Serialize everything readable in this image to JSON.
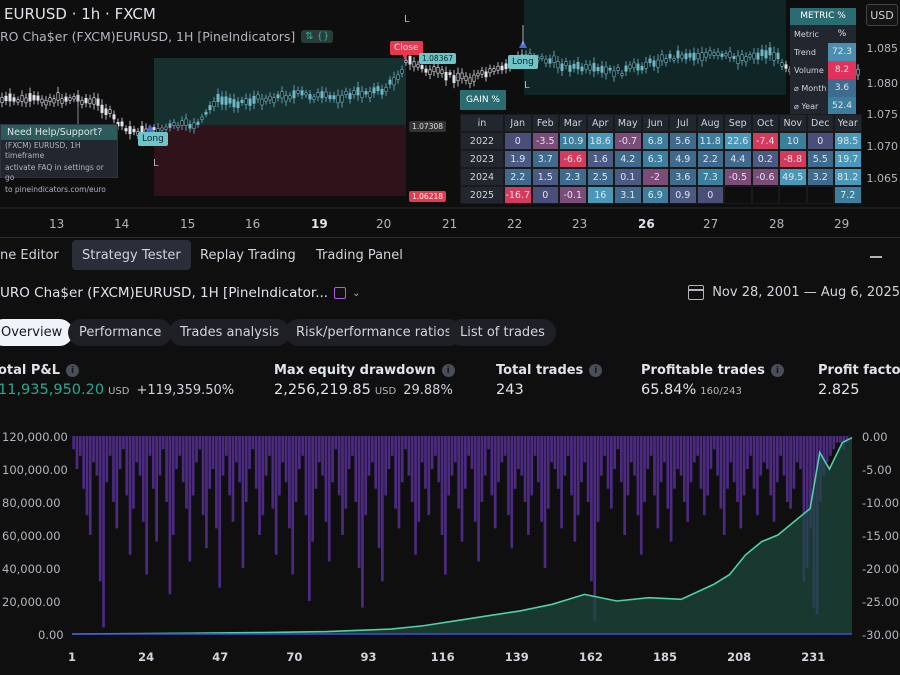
{
  "symbol": {
    "title": "EURUSD · 1h · FXCM",
    "subtitle": "RO Cha$er (FXCM)EURUSD, 1H [PineIndicators]"
  },
  "currency": "USD",
  "price_axis": [
    "1.085",
    "1.080",
    "1.075",
    "1.070",
    "1.065"
  ],
  "time_axis": [
    {
      "label": "13",
      "bold": false
    },
    {
      "label": "14",
      "bold": false
    },
    {
      "label": "15",
      "bold": false
    },
    {
      "label": "16",
      "bold": false
    },
    {
      "label": "19",
      "bold": true
    },
    {
      "label": "20",
      "bold": false
    },
    {
      "label": "21",
      "bold": false
    },
    {
      "label": "22",
      "bold": false
    },
    {
      "label": "23",
      "bold": false
    },
    {
      "label": "26",
      "bold": true
    },
    {
      "label": "27",
      "bold": false
    },
    {
      "label": "28",
      "bold": false
    },
    {
      "label": "29",
      "bold": false
    }
  ],
  "help_box": {
    "title": "Need Help/Support?",
    "lines": [
      "(FXCM) EURUSD, 1H timeframe",
      "activate FAQ in settings or go",
      "to pineindicators.com/euro"
    ]
  },
  "trade_tags": {
    "long": "Long",
    "close": "Close",
    "long_right": "Long"
  },
  "markers": {
    "letter": "L"
  },
  "price_marks": {
    "entry": "1.07308",
    "stop": "1.06218",
    "tp": "1.08367"
  },
  "metric_table": {
    "title": "METRIC %",
    "header_value": "%",
    "rows": [
      {
        "name": "Trend",
        "value": "72.3",
        "color": "#4a8fb0"
      },
      {
        "name": "Volume",
        "value": "8.2",
        "color": "#e0325b"
      },
      {
        "name": "⌀ Month",
        "value": "3.6",
        "color": "#3d6c8e"
      },
      {
        "name": "⌀ Year",
        "value": "52.4",
        "color": "#3d7e9c"
      }
    ]
  },
  "gain_table": {
    "title": "GAIN %",
    "header": [
      "in",
      "Jan",
      "Feb",
      "Mar",
      "Apr",
      "May",
      "Jun",
      "Jul",
      "Aug",
      "Sep",
      "Oct",
      "Nov",
      "Dec",
      "Year"
    ],
    "rows": [
      {
        "year": "2022",
        "values": [
          "0",
          "-3.5",
          "10.9",
          "18.6",
          "-0.7",
          "6.8",
          "5.6",
          "11.8",
          "22.6",
          "-7.4",
          "10",
          "0",
          "98.5"
        ]
      },
      {
        "year": "2023",
        "values": [
          "1.9",
          "3.7",
          "-6.6",
          "1.6",
          "4.2",
          "6.3",
          "4.9",
          "2.2",
          "4.4",
          "0.2",
          "-8.8",
          "5.5",
          "19.7"
        ]
      },
      {
        "year": "2024",
        "values": [
          "2.2",
          "1.5",
          "2.3",
          "2.5",
          "0.1",
          "-2",
          "3.6",
          "7.3",
          "-0.5",
          "-0.6",
          "49.5",
          "3.2",
          "81.2"
        ]
      },
      {
        "year": "2025",
        "values": [
          "-16.7",
          "0",
          "-0.1",
          "16",
          "3.1",
          "6.9",
          "0.9",
          "0",
          "",
          "",
          "",
          "",
          "7.2"
        ]
      }
    ]
  },
  "tabs": [
    "ne Editor",
    "Strategy Tester",
    "Replay Trading",
    "Trading Panel"
  ],
  "active_tab": "Strategy Tester",
  "strategy": {
    "title": "URO Cha$er (FXCM)EURUSD, 1H [PineIndicator...",
    "date_range": "Nov 28, 2001 — Aug 6, 2025"
  },
  "subtabs": [
    "Overview",
    "Performance",
    "Trades analysis",
    "Risk/performance ratios",
    "List of trades"
  ],
  "stats": [
    {
      "label": "otal P&L",
      "value": "11,935,950.20",
      "unit": "USD",
      "extra": "+119,359.50%",
      "green": true
    },
    {
      "label": "Max equity drawdown",
      "value": "2,256,219.85",
      "unit": "USD",
      "extra": "29.88%",
      "green": false
    },
    {
      "label": "Total trades",
      "value": "243",
      "unit": "",
      "extra": "",
      "green": false
    },
    {
      "label": "Profitable trades",
      "value": "65.84%",
      "unit": "160/243",
      "extra": "",
      "green": false
    },
    {
      "label": "Profit factor",
      "value": "2.825",
      "unit": "",
      "extra": "",
      "green": false
    }
  ],
  "chart_data": {
    "type": "area",
    "x_ticks": [
      "1",
      "24",
      "47",
      "70",
      "93",
      "116",
      "139",
      "162",
      "185",
      "208",
      "231"
    ],
    "y_ticks_left": [
      "120,000.00",
      "100,000.00",
      "80,000.00",
      "60,000.00",
      "40,000.00",
      "20,000.00",
      "0.00"
    ],
    "y_ticks_right": [
      "0.00",
      "-5.00",
      "-10.00",
      "-15.00",
      "-20.00",
      "-25.00",
      "-30.00"
    ],
    "ylim_left": [
      0,
      120000
    ],
    "ylim_right": [
      -30,
      0
    ],
    "xlim": [
      1,
      243
    ],
    "series": [
      {
        "color": "#4fd1a5",
        "x": [
          1,
          20,
          40,
          60,
          80,
          100,
          110,
          120,
          130,
          140,
          150,
          160,
          170,
          180,
          190,
          200,
          205,
          210,
          215,
          220,
          225,
          230,
          233,
          236,
          238,
          240,
          243
        ],
        "values": [
          0,
          200,
          500,
          900,
          1500,
          3000,
          5000,
          8000,
          11000,
          14000,
          18000,
          24000,
          20000,
          22000,
          21000,
          30000,
          36000,
          48000,
          56000,
          60000,
          68000,
          76000,
          110000,
          100000,
          108000,
          116000,
          119000
        ]
      },
      {
        "color": "#4b2a80",
        "values": [
          -2,
          -5,
          -3,
          -8,
          -12,
          -15,
          -4,
          -6,
          -22,
          -29,
          -7,
          -3,
          -10,
          -14,
          -5,
          -2,
          -9,
          -18,
          -11,
          -4,
          -6,
          -13,
          -21,
          -3,
          -8,
          -16,
          -6,
          -2,
          -10,
          -24,
          -15,
          -5,
          -3,
          -7,
          -11,
          -19,
          -9,
          -4,
          -2,
          -12,
          -17,
          -8,
          -5,
          -14,
          -23,
          -6,
          -3,
          -9,
          -13,
          -4,
          -7,
          -20,
          -10,
          -5,
          -2,
          -8,
          -15,
          -12,
          -6,
          -3,
          -11,
          -18,
          -9,
          -4,
          -7,
          -14,
          -21,
          -10,
          -5,
          -3,
          -12,
          -25,
          -16,
          -8,
          -4,
          -6,
          -13,
          -19,
          -7,
          -2,
          -9,
          -15,
          -11,
          -5,
          -3,
          -10,
          -20,
          -26,
          -12,
          -6,
          -4,
          -8,
          -17,
          -22,
          -9,
          -5,
          -3,
          -11,
          -14,
          -7,
          -2,
          -6,
          -10,
          -18,
          -13,
          -4,
          -8,
          -12,
          -5,
          -3,
          -7,
          -15,
          -21,
          -9,
          -6,
          -4,
          -11,
          -16,
          -8,
          -3,
          -5,
          -13,
          -19,
          -10,
          -6,
          -2,
          -9,
          -14,
          -7,
          -4,
          -3,
          -12,
          -17,
          -8,
          -5,
          -6,
          -10,
          -15,
          -9,
          -3,
          -7,
          -13,
          -20,
          -11,
          -4,
          -5,
          -8,
          -14,
          -6,
          -3,
          -9,
          -16,
          -12,
          -7,
          -4,
          -10,
          -22,
          -28,
          -13,
          -6,
          -3,
          -8,
          -11,
          -5,
          -2,
          -7,
          -15,
          -9,
          -4,
          -6,
          -12,
          -18,
          -10,
          -5,
          -3,
          -9,
          -14,
          -7,
          -4,
          -11,
          -16,
          -8,
          -5,
          -6,
          -10,
          -13,
          -7,
          -4,
          -3,
          -8,
          -12,
          -9,
          -5,
          -2,
          -6,
          -11,
          -15,
          -8,
          -4,
          -7,
          -10,
          -14,
          -9,
          -5,
          -3,
          -8,
          -12,
          -6,
          -4,
          -5,
          -9,
          -13,
          -7,
          -3,
          -6,
          -10,
          -11,
          -8,
          -4,
          -5,
          -22,
          -20,
          -14,
          -26,
          -27,
          -10,
          -6,
          -4,
          -3,
          -2,
          -1,
          -1,
          -2,
          -1,
          0
        ]
      }
    ]
  }
}
